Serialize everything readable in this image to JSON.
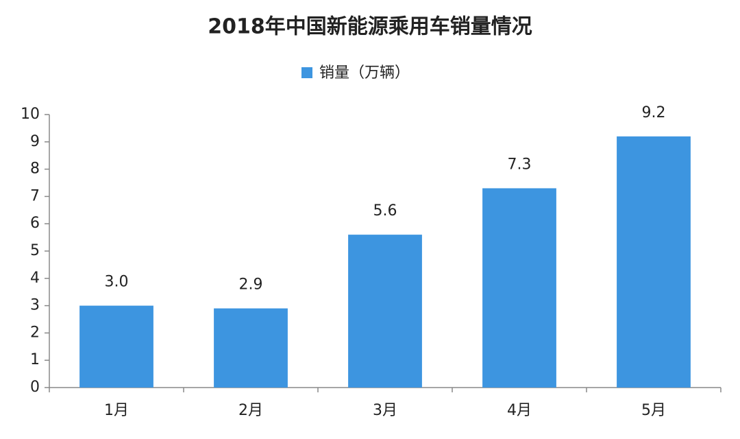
{
  "chart_data": {
    "type": "bar",
    "title": "2018年中国新能源乘用车销量情况",
    "categories": [
      "1月",
      "2月",
      "3月",
      "4月",
      "5月"
    ],
    "series": [
      {
        "name": "销量（万辆）",
        "color": "#3d95e0",
        "values": [
          3.0,
          2.9,
          5.6,
          7.3,
          9.2
        ],
        "value_labels": [
          "3.0",
          "2.9",
          "5.6",
          "7.3",
          "9.2"
        ]
      }
    ],
    "ylim": [
      0,
      10
    ],
    "yticks": [
      0,
      1,
      2,
      3,
      4,
      5,
      6,
      7,
      8,
      9,
      10
    ],
    "grid": false,
    "legend": "top"
  }
}
